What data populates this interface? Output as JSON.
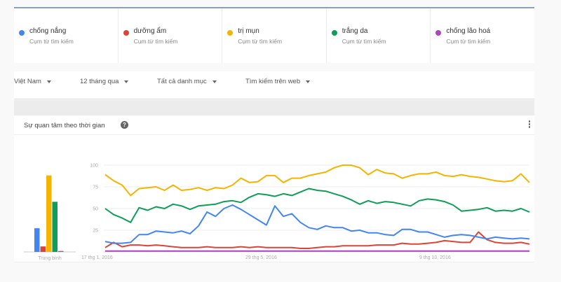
{
  "compare_terms": [
    {
      "name": "chống nắng",
      "sub": "Cụm từ tìm kiếm",
      "color": "#4285f4"
    },
    {
      "name": "dưỡng ẩm",
      "sub": "Cụm từ tìm kiếm",
      "color": "#db4437"
    },
    {
      "name": "trị mụn",
      "sub": "Cụm từ tìm kiếm",
      "color": "#f4b400"
    },
    {
      "name": "trắng da",
      "sub": "Cụm từ tìm kiếm",
      "color": "#0f9d58"
    },
    {
      "name": "chống lão hoá",
      "sub": "Cụm từ tìm kiếm",
      "color": "#ab47bc"
    }
  ],
  "filters": {
    "region": "Việt Nam",
    "period": "12 tháng qua",
    "category": "Tất cả danh mục",
    "search_type": "Tìm kiếm trên web"
  },
  "interest_card": {
    "title": "Sự quan tâm theo thời gian",
    "help_icon": "?",
    "menu_icon": "more-vert-icon"
  },
  "chart_data": {
    "type": "line",
    "title": "Sự quan tâm theo thời gian",
    "xlabel": "",
    "ylabel": "",
    "ylim": [
      0,
      100
    ],
    "yticks": [
      25,
      50,
      75,
      100
    ],
    "grid": true,
    "x_tick_labels": [
      "17 thg 1, 2016",
      "29 thg 5, 2016",
      "9 thg 10, 2016"
    ],
    "average_bars": {
      "label": "Trung bình",
      "values": {
        "chống nắng": 26,
        "dưỡng ẩm": 6,
        "trị mụn": 84,
        "trắng da": 55,
        "chống lão hoá": 1
      }
    },
    "series": [
      {
        "name": "trị mụn",
        "color": "#f4b400",
        "values": [
          89,
          82,
          77,
          65,
          73,
          74,
          75,
          71,
          77,
          71,
          72,
          74,
          71,
          74,
          73,
          77,
          85,
          80,
          81,
          88,
          88,
          80,
          85,
          85,
          88,
          90,
          92,
          97,
          100,
          100,
          97,
          89,
          95,
          91,
          90,
          85,
          88,
          90,
          90,
          92,
          88,
          87,
          89,
          87,
          86,
          84,
          82,
          81,
          82,
          90,
          80
        ]
      },
      {
        "name": "trắng da",
        "color": "#0f9d58",
        "values": [
          50,
          43,
          39,
          34,
          51,
          48,
          52,
          50,
          55,
          53,
          49,
          53,
          54,
          55,
          58,
          59,
          57,
          63,
          67,
          66,
          64,
          67,
          65,
          69,
          73,
          71,
          70,
          67,
          64,
          60,
          55,
          59,
          56,
          58,
          57,
          55,
          53,
          59,
          61,
          60,
          58,
          54,
          47,
          48,
          49,
          51,
          47,
          48,
          47,
          50,
          46
        ]
      },
      {
        "name": "chống nắng",
        "color": "#4285f4",
        "values": [
          12,
          10,
          10,
          11,
          20,
          20,
          24,
          23,
          22,
          24,
          21,
          30,
          46,
          41,
          50,
          54,
          49,
          43,
          37,
          31,
          53,
          41,
          44,
          34,
          28,
          26,
          30,
          28,
          28,
          24,
          25,
          22,
          22,
          20,
          19,
          26,
          26,
          23,
          23,
          20,
          17,
          19,
          20,
          19,
          17,
          15,
          17,
          16,
          15,
          16,
          15
        ]
      },
      {
        "name": "dưỡng ẩm",
        "color": "#db4437",
        "values": [
          5,
          11,
          6,
          8,
          8,
          7,
          8,
          7,
          6,
          5,
          5,
          5,
          6,
          5,
          5,
          5,
          6,
          5,
          6,
          5,
          5,
          5,
          5,
          4,
          4,
          5,
          6,
          6,
          7,
          7,
          7,
          7,
          8,
          8,
          8,
          10,
          9,
          9,
          10,
          11,
          13,
          12,
          11,
          11,
          23,
          14,
          11,
          10,
          10,
          11,
          9
        ]
      },
      {
        "name": "chống lão hoá",
        "color": "#ab47bc",
        "values": [
          1,
          1,
          1,
          1,
          1,
          1,
          1,
          1,
          1,
          1,
          1,
          1,
          1,
          1,
          1,
          1,
          1,
          1,
          1,
          1,
          1,
          1,
          1,
          1,
          1,
          1,
          1,
          1,
          1,
          1,
          1,
          1,
          1,
          1,
          1,
          1,
          1,
          1,
          1,
          1,
          1,
          1,
          1,
          1,
          1,
          1,
          1,
          1,
          1,
          1,
          1
        ]
      }
    ]
  }
}
